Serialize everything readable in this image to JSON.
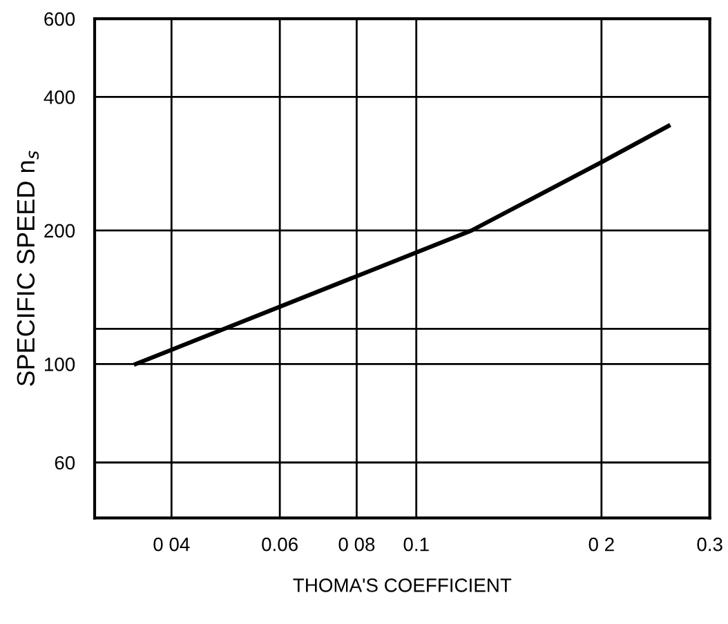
{
  "chart_data": {
    "type": "line",
    "xlabel": "THOMA'S COEFFICIENT",
    "ylabel": "SPECIFIC SPEED n$_{s}$",
    "log": "xy",
    "grid": true,
    "marker": "none",
    "line_style": "solid",
    "series": [
      {
        "color": "#000000",
        "x": [
          0.035,
          0.123,
          0.2,
          0.257
        ],
        "values": [
          100,
          200,
          285,
          344
        ]
      }
    ],
    "xlim": [
      0.03,
      0.3
    ],
    "xticks": [
      {
        "value": 0.04,
        "label": "0 04"
      },
      {
        "value": 0.06,
        "label": "0.06"
      },
      {
        "value": 0.08,
        "label": "0 08"
      },
      0.1,
      {
        "value": 0.2,
        "label": "0 2"
      },
      0.3
    ],
    "ylim": [
      45,
      600
    ],
    "yticks": [
      60,
      100,
      {
        "value": 120,
        "label": null
      },
      200,
      400,
      600
    ]
  }
}
